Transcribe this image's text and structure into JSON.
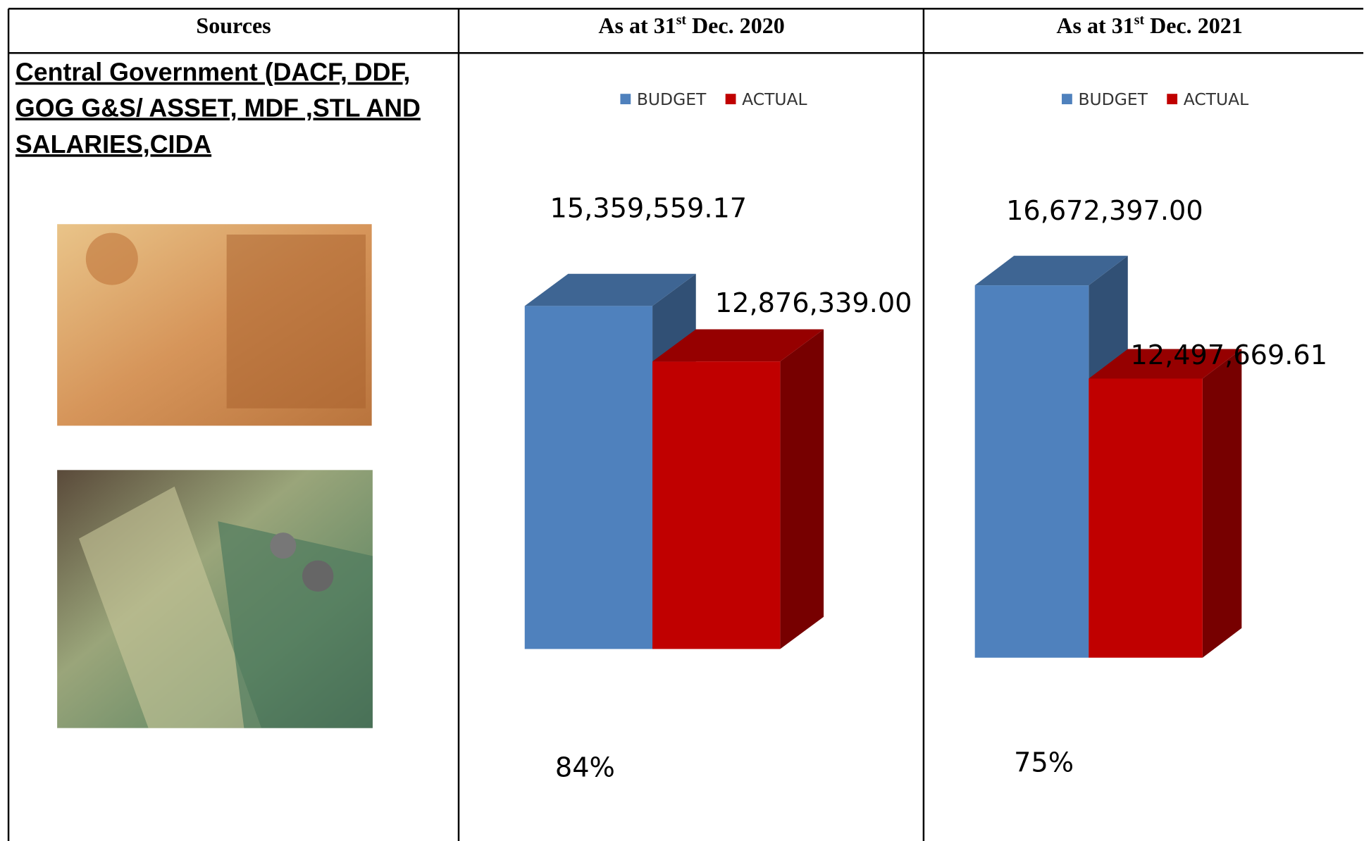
{
  "table": {
    "header": [
      "Sources",
      {
        "pre": "As at 31",
        "sup": "st",
        "post": " Dec. 2020"
      },
      {
        "pre": "As at 31",
        "sup": "st",
        "post": " Dec. 2021"
      }
    ],
    "source": [
      "Central Government (DACF, DDF,",
      "GOG G&S/ ASSET, MDF ,STL AND",
      "SALARIES,CIDA"
    ]
  },
  "chart_data": [
    {
      "type": "bar",
      "ylim": [
        0,
        17000000
      ],
      "series": [
        {
          "name": "BUDGET",
          "color": "#4f81bd",
          "values": [
            15359559.17
          ],
          "value_labels": [
            "15,359,559.17"
          ]
        },
        {
          "name": "ACTUAL",
          "color": "#c00000",
          "values": [
            12876339.0
          ],
          "value_labels": [
            "12,876,339.00"
          ]
        }
      ],
      "annotation": "84%"
    },
    {
      "type": "bar",
      "ylim": [
        0,
        17000000
      ],
      "series": [
        {
          "name": "BUDGET",
          "color": "#4f81bd",
          "values": [
            16672397.0
          ],
          "value_labels": [
            "16,672,397.00"
          ]
        },
        {
          "name": "ACTUAL",
          "color": "#c00000",
          "values": [
            12497669.61
          ],
          "value_labels": [
            "12,497,669.61"
          ]
        }
      ],
      "annotation": "75%"
    }
  ]
}
